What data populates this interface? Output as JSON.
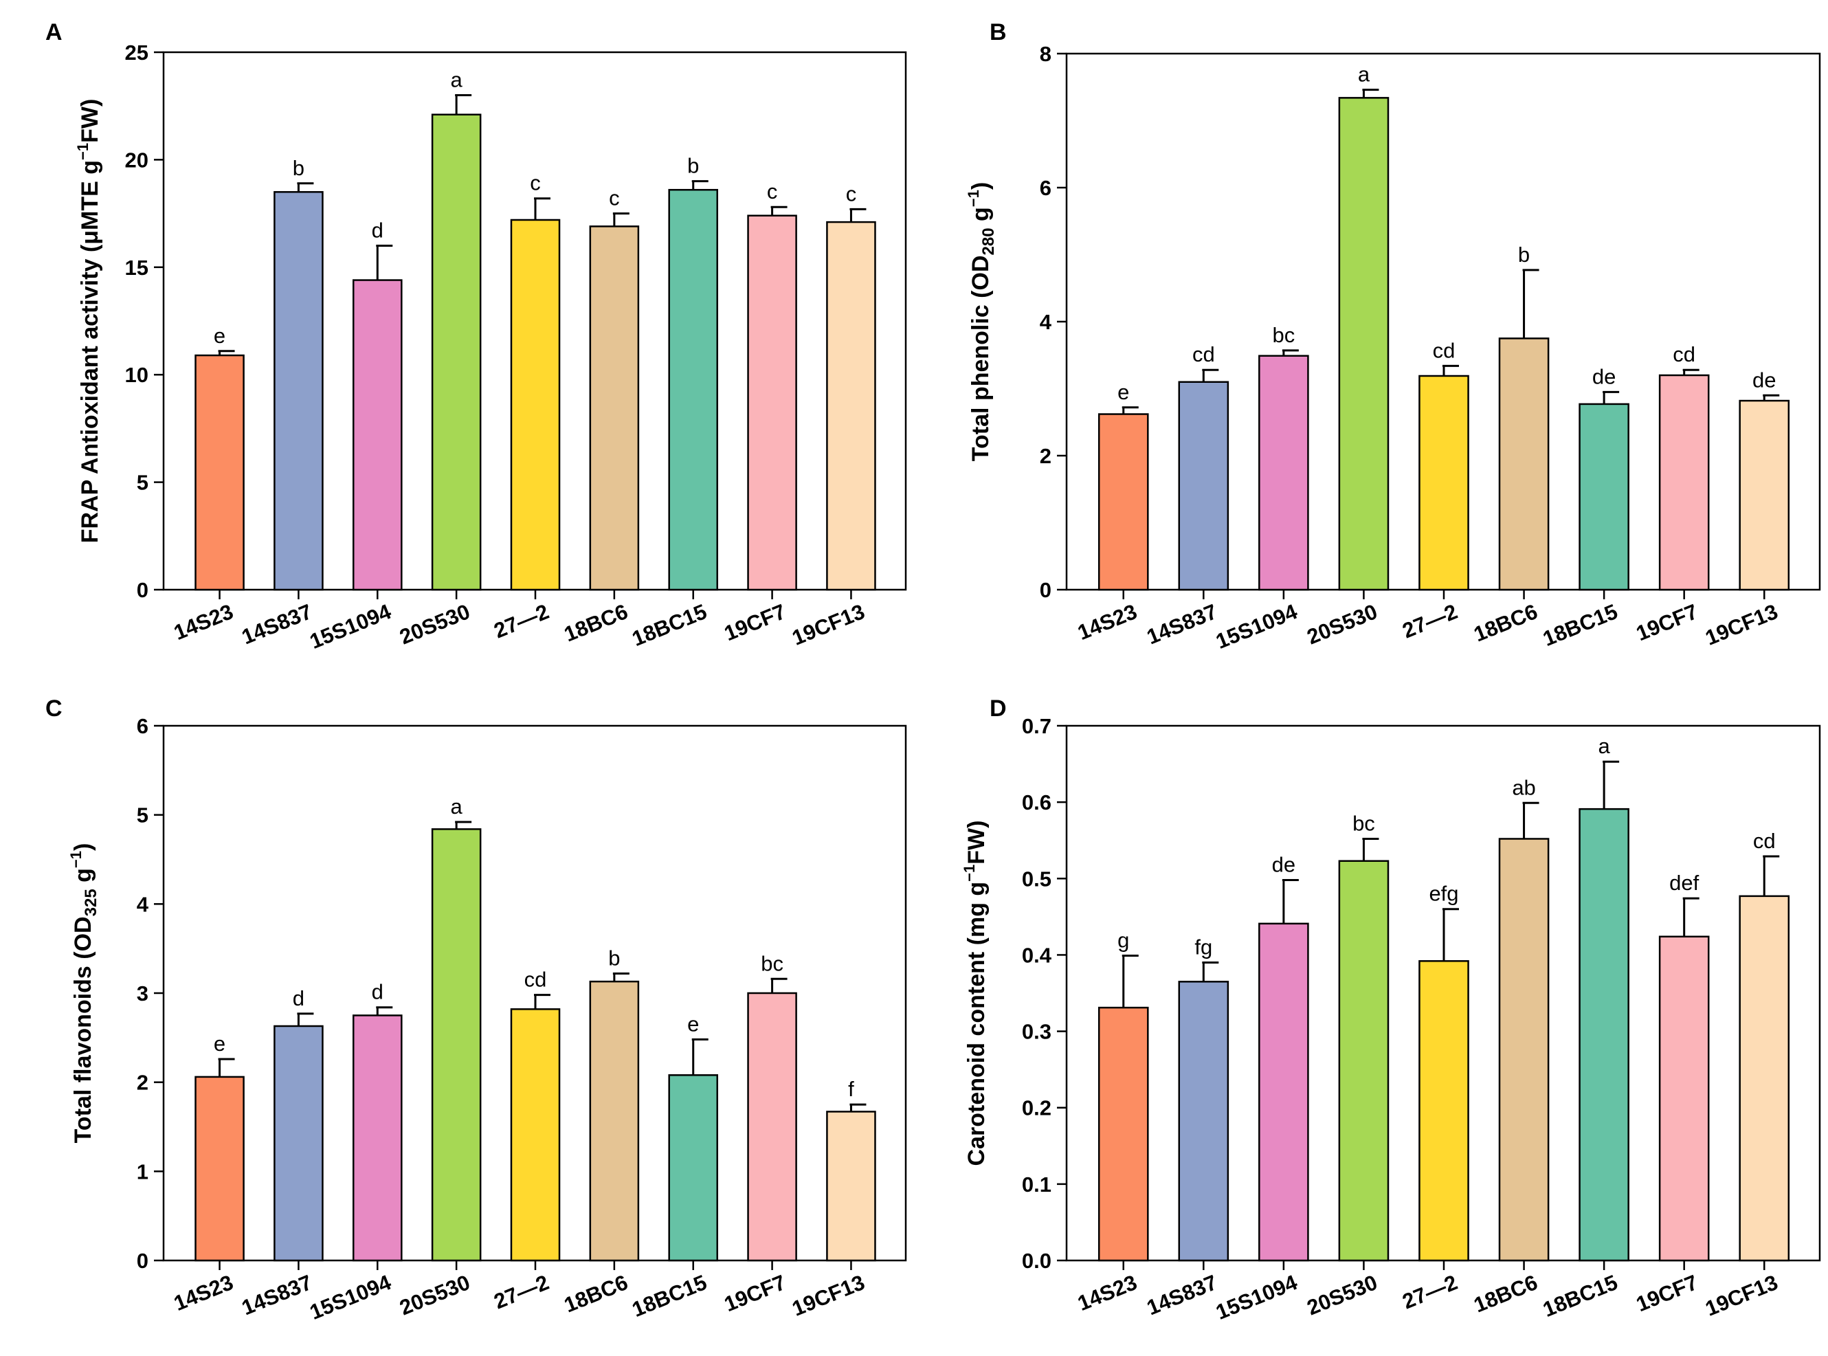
{
  "colors": [
    "#FC8D62",
    "#8DA0CB",
    "#E78AC3",
    "#A6D854",
    "#FFD92F",
    "#E5C494",
    "#66C2A5",
    "#FBB4B9",
    "#FDDCB5"
  ],
  "chart_data": [
    {
      "panel": "A",
      "type": "bar",
      "title": "",
      "xlabel": "",
      "ylabel": "FRAP Antioxidant activity (μMTE g⁻¹FW)",
      "ylabel_parts": {
        "main": "FRAP Antioxidant activity (μMTE g",
        "sup": "−1",
        "tail": "FW)"
      },
      "ylim": [
        0,
        25
      ],
      "yticks": [
        0,
        5,
        10,
        15,
        20,
        25
      ],
      "ytick_labels": [
        "0",
        "5",
        "10",
        "15",
        "20",
        "25"
      ],
      "categories": [
        "14S23",
        "14S837",
        "15S1094",
        "20S530",
        "27—2",
        "18BC6",
        "18BC15",
        "19CF7",
        "19CF13"
      ],
      "values": [
        10.9,
        18.5,
        14.4,
        22.1,
        17.2,
        16.9,
        18.6,
        17.4,
        17.1
      ],
      "errors": [
        0.2,
        0.4,
        1.6,
        0.9,
        1.0,
        0.6,
        0.4,
        0.4,
        0.6
      ],
      "letters": [
        "e",
        "b",
        "d",
        "a",
        "c",
        "c",
        "b",
        "c",
        "c"
      ]
    },
    {
      "panel": "B",
      "type": "bar",
      "title": "",
      "xlabel": "",
      "ylabel": "Total phenolic (OD280 g⁻¹)",
      "ylabel_parts": {
        "main": "Total phenolic (OD",
        "sub": "280",
        "mid": " g",
        "sup": "−1",
        "tail": ")"
      },
      "ylim": [
        0,
        8
      ],
      "yticks": [
        0,
        2,
        4,
        6,
        8
      ],
      "ytick_labels": [
        "0",
        "2",
        "4",
        "6",
        "8"
      ],
      "categories": [
        "14S23",
        "14S837",
        "15S1094",
        "20S530",
        "27—2",
        "18BC6",
        "18BC15",
        "19CF7",
        "19CF13"
      ],
      "values": [
        2.62,
        3.1,
        3.49,
        7.34,
        3.19,
        3.75,
        2.77,
        3.2,
        2.82
      ],
      "errors": [
        0.1,
        0.18,
        0.08,
        0.12,
        0.15,
        1.02,
        0.18,
        0.08,
        0.08
      ],
      "letters": [
        "e",
        "cd",
        "bc",
        "a",
        "cd",
        "b",
        "de",
        "cd",
        "de"
      ]
    },
    {
      "panel": "C",
      "type": "bar",
      "title": "",
      "xlabel": "",
      "ylabel": "Total flavonoids (OD325 g⁻¹)",
      "ylabel_parts": {
        "main": "Total flavonoids (OD",
        "sub": "325",
        "mid": " g",
        "sup": "−1",
        "tail": ")"
      },
      "ylim": [
        0,
        6
      ],
      "yticks": [
        0,
        1,
        2,
        3,
        4,
        5,
        6
      ],
      "ytick_labels": [
        "0",
        "1",
        "2",
        "3",
        "4",
        "5",
        "6"
      ],
      "categories": [
        "14S23",
        "14S837",
        "15S1094",
        "20S530",
        "27—2",
        "18BC6",
        "18BC15",
        "19CF7",
        "19CF13"
      ],
      "values": [
        2.06,
        2.63,
        2.75,
        4.84,
        2.82,
        3.13,
        2.08,
        3.0,
        1.67
      ],
      "errors": [
        0.2,
        0.14,
        0.09,
        0.08,
        0.16,
        0.09,
        0.4,
        0.16,
        0.08
      ],
      "letters": [
        "e",
        "d",
        "d",
        "a",
        "cd",
        "b",
        "e",
        "bc",
        "f"
      ]
    },
    {
      "panel": "D",
      "type": "bar",
      "title": "",
      "xlabel": "",
      "ylabel": "Carotenoid content (mg g⁻¹FW)",
      "ylabel_parts": {
        "main": "Carotenoid content (mg g",
        "sup": "−1",
        "tail": "FW)"
      },
      "ylim": [
        0,
        0.7
      ],
      "yticks": [
        0,
        0.1,
        0.2,
        0.3,
        0.4,
        0.5,
        0.6,
        0.7
      ],
      "ytick_labels": [
        "0.0",
        "0.1",
        "0.2",
        "0.3",
        "0.4",
        "0.5",
        "0.6",
        "0.7"
      ],
      "categories": [
        "14S23",
        "14S837",
        "15S1094",
        "20S530",
        "27—2",
        "18BC6",
        "18BC15",
        "19CF7",
        "19CF13"
      ],
      "values": [
        0.331,
        0.365,
        0.441,
        0.523,
        0.392,
        0.552,
        0.591,
        0.424,
        0.477
      ],
      "errors": [
        0.068,
        0.025,
        0.057,
        0.029,
        0.068,
        0.047,
        0.062,
        0.05,
        0.052
      ],
      "letters": [
        "g",
        "fg",
        "de",
        "bc",
        "efg",
        "ab",
        "a",
        "def",
        "cd"
      ]
    }
  ]
}
